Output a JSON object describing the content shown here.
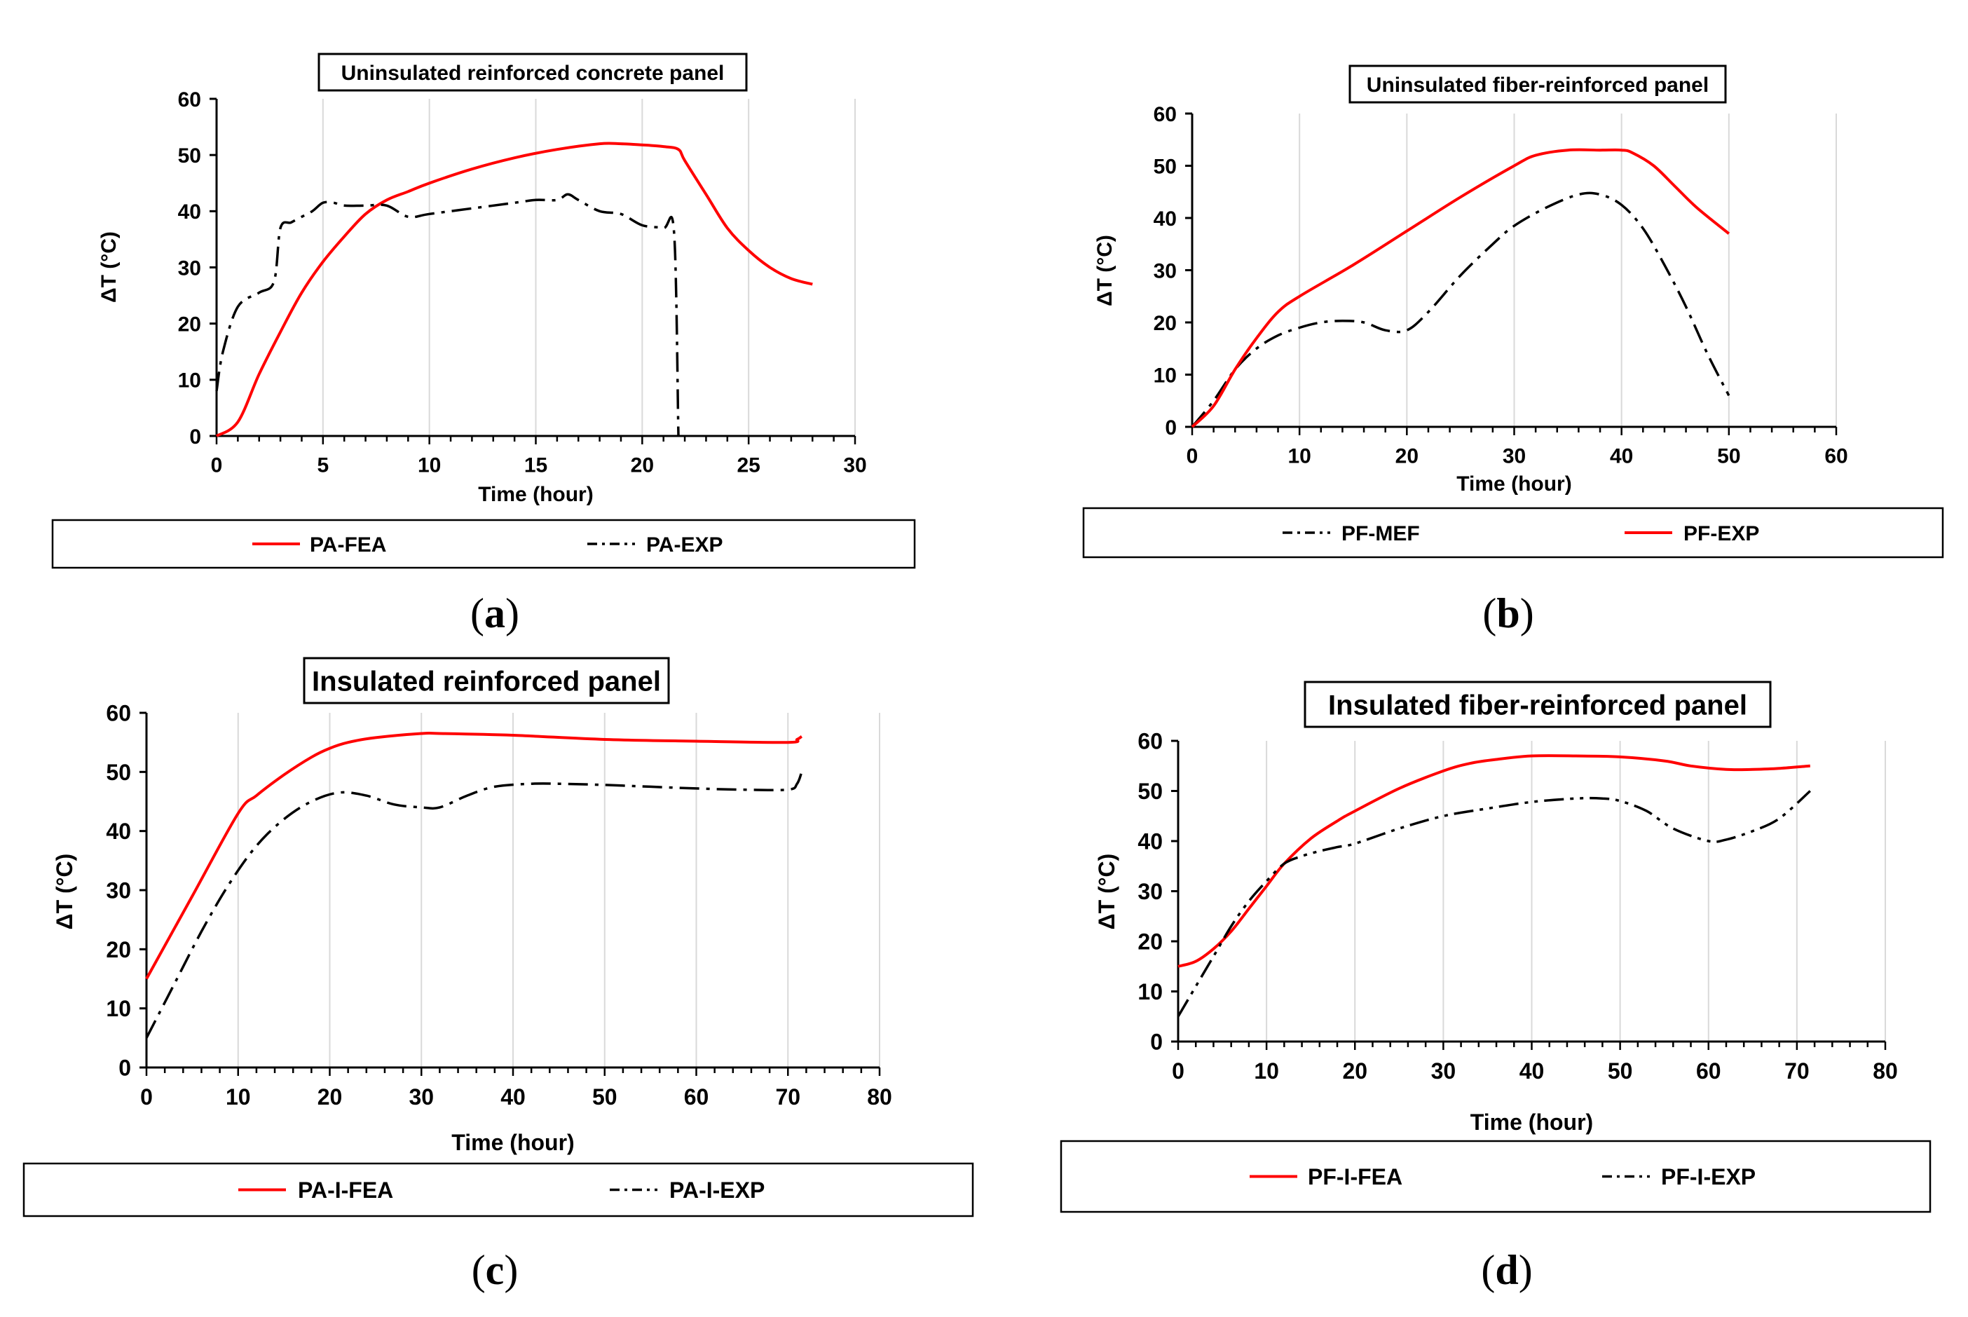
{
  "chart_data": [
    {
      "type": "line",
      "panel_label": "a",
      "title": "Uninsulated reinforced concrete panel",
      "xlabel": "Time (hour)",
      "ylabel": "ΔT (°C)",
      "xlim": [
        0,
        30
      ],
      "ylim": [
        0,
        60
      ],
      "xticks": [
        0,
        5,
        10,
        15,
        20,
        25,
        30
      ],
      "yticks": [
        0,
        10,
        20,
        30,
        40,
        50,
        60
      ],
      "grid": "vertical",
      "legend_position": "bottom",
      "series": [
        {
          "name": "PA-FEA",
          "color": "#ff0000",
          "style": "solid",
          "x": [
            0,
            1,
            2,
            3,
            4,
            5,
            6,
            7,
            8,
            9,
            10,
            12,
            14,
            16,
            18,
            19,
            20,
            21,
            21.7,
            22,
            23,
            24,
            25,
            26,
            27,
            28
          ],
          "y": [
            0,
            2.5,
            11,
            18.5,
            25.5,
            31,
            35.5,
            39.5,
            42,
            43.5,
            45,
            47.5,
            49.5,
            51,
            52,
            52,
            51.8,
            51.5,
            51,
            49,
            43,
            37,
            33,
            30,
            28,
            27
          ]
        },
        {
          "name": "PA-EXP",
          "color": "#000000",
          "style": "dashdot",
          "x": [
            0,
            0.3,
            1,
            2,
            2.7,
            3,
            3.5,
            4,
            4.5,
            5,
            5.5,
            6,
            7,
            8,
            9,
            10,
            12,
            14,
            15,
            16,
            16.5,
            17,
            18,
            19,
            20,
            21,
            21.5,
            21.7
          ],
          "y": [
            8,
            15,
            23,
            25.5,
            27.5,
            37,
            38,
            39,
            40,
            41.5,
            41.5,
            41,
            41,
            41,
            39,
            39.5,
            40.5,
            41.5,
            42,
            42,
            43,
            42,
            40,
            39.5,
            37.5,
            37,
            36,
            0
          ]
        }
      ]
    },
    {
      "type": "line",
      "panel_label": "b",
      "title": "Uninsulated fiber-reinforced panel",
      "xlabel": "Time (hour)",
      "ylabel": "ΔT (°C)",
      "xlim": [
        0,
        60
      ],
      "ylim": [
        0,
        60
      ],
      "xticks": [
        0,
        10,
        20,
        30,
        40,
        50,
        60
      ],
      "yticks": [
        0,
        10,
        20,
        30,
        40,
        50,
        60
      ],
      "grid": "vertical",
      "legend_position": "bottom",
      "series": [
        {
          "name": "PF-MEF",
          "color": "#000000",
          "style": "dashdot",
          "x": [
            0,
            2,
            4,
            6,
            8,
            10,
            12,
            14,
            16,
            18,
            20,
            22,
            25,
            28,
            30,
            33,
            36,
            38,
            40,
            42,
            44,
            46,
            48,
            50
          ],
          "y": [
            0,
            5,
            11,
            15,
            17.5,
            19,
            20,
            20.3,
            20,
            18.5,
            18.5,
            22,
            29,
            35,
            38.5,
            42,
            44.5,
            44.5,
            42.5,
            38,
            31,
            23,
            14,
            6
          ]
        },
        {
          "name": "PF-EXP",
          "color": "#ff0000",
          "style": "solid",
          "x": [
            0,
            2,
            4,
            6,
            8,
            10,
            15,
            20,
            25,
            30,
            32,
            35,
            38,
            40,
            41,
            43,
            45,
            47,
            50
          ],
          "y": [
            0,
            4,
            11,
            17,
            22,
            25,
            31,
            37.5,
            44,
            50,
            52,
            53,
            53,
            53,
            52.5,
            50,
            46,
            42,
            37
          ]
        }
      ]
    },
    {
      "type": "line",
      "panel_label": "c",
      "title": "Insulated reinforced panel",
      "xlabel": "Time (hour)",
      "ylabel": "ΔT (°C)",
      "xlim": [
        0,
        80
      ],
      "ylim": [
        0,
        60
      ],
      "xticks": [
        0,
        10,
        20,
        30,
        40,
        50,
        60,
        70,
        80
      ],
      "yticks": [
        0,
        10,
        20,
        30,
        40,
        50,
        60
      ],
      "grid": "vertical",
      "legend_position": "bottom",
      "series": [
        {
          "name": "PA-I-FEA",
          "color": "#ff0000",
          "style": "solid",
          "x": [
            0,
            5,
            10,
            12,
            15,
            18,
            20,
            22,
            25,
            30,
            32,
            40,
            50,
            60,
            70,
            71,
            71.5
          ],
          "y": [
            15,
            29,
            43,
            46,
            49.5,
            52.5,
            54,
            55,
            55.8,
            56.5,
            56.5,
            56.2,
            55.5,
            55.2,
            55,
            55.5,
            56
          ]
        },
        {
          "name": "PA-I-EXP",
          "color": "#000000",
          "style": "dashdot",
          "x": [
            0,
            3,
            6,
            9,
            12,
            15,
            18,
            21,
            24,
            27,
            30,
            32,
            35,
            38,
            42,
            45,
            50,
            55,
            60,
            65,
            70,
            71,
            71.5
          ],
          "y": [
            5,
            14,
            23,
            31,
            37.5,
            42,
            45,
            46.5,
            46,
            44.5,
            44,
            44,
            46,
            47.5,
            48,
            48,
            47.8,
            47.5,
            47.2,
            47,
            47,
            48,
            50
          ]
        }
      ]
    },
    {
      "type": "line",
      "panel_label": "d",
      "title": "Insulated fiber-reinforced panel",
      "xlabel": "Time (hour)",
      "ylabel": "ΔT (°C)",
      "xlim": [
        0,
        80
      ],
      "ylim": [
        0,
        60
      ],
      "xticks": [
        0,
        10,
        20,
        30,
        40,
        50,
        60,
        70,
        80
      ],
      "yticks": [
        0,
        10,
        20,
        30,
        40,
        50,
        60
      ],
      "grid": "vertical",
      "legend_position": "bottom",
      "series": [
        {
          "name": "PF-I-FEA",
          "color": "#ff0000",
          "style": "solid",
          "x": [
            0,
            2,
            4,
            6,
            8,
            10,
            12,
            15,
            18,
            20,
            25,
            30,
            33,
            36,
            40,
            45,
            50,
            55,
            58,
            62,
            65,
            68,
            71.5
          ],
          "y": [
            15,
            16,
            18.5,
            22,
            26.5,
            31,
            35.5,
            40.5,
            44,
            46,
            50.5,
            54,
            55.5,
            56.3,
            57,
            57,
            56.8,
            56,
            55,
            54.3,
            54.3,
            54.5,
            55
          ]
        },
        {
          "name": "PF-I-EXP",
          "color": "#000000",
          "style": "dashdotdot",
          "x": [
            0,
            2,
            4,
            6,
            8,
            10,
            12,
            14,
            16,
            18,
            20,
            25,
            30,
            35,
            40,
            45,
            48,
            50,
            53,
            56,
            60,
            62,
            65,
            68,
            71.5
          ],
          "y": [
            5,
            11,
            17,
            23,
            28,
            32,
            35.5,
            37,
            38,
            38.8,
            39.5,
            42.5,
            45,
            46.5,
            47.8,
            48.5,
            48.5,
            48,
            46,
            42.5,
            40,
            40.3,
            42,
            44.5,
            50
          ]
        }
      ]
    }
  ]
}
